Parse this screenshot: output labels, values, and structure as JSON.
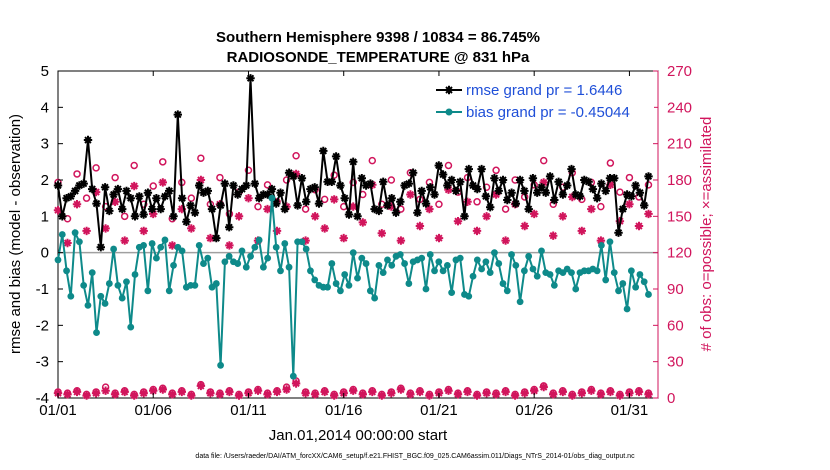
{
  "chart_data": {
    "type": "line",
    "title": "Southern Hemisphere 9398 / 10834 = 86.745%",
    "subtitle": "RADIOSONDE_TEMPERATURE @ 831 hPa",
    "xlabel": "Jan.01,2014 00:00:00 start",
    "ylabel": "rmse and bias (model - observation)",
    "y2label": "# of obs: o=possible; ×=assimilated",
    "footnote": "data file: /Users/raeder/DAI/ATM_forcXX/CAM6_setup/f.e21.FHIST_BGC.f09_025.CAM6assim.011/Diags_NTrS_2014-01/obs_diag_output.nc",
    "xlim": [
      0,
      31.5
    ],
    "ylim": [
      -4,
      5
    ],
    "y2lim": [
      0,
      270
    ],
    "xticks": [
      0,
      5,
      10,
      15,
      20,
      25,
      30
    ],
    "xticklabels": [
      "01/01",
      "01/06",
      "01/11",
      "01/16",
      "01/21",
      "01/26",
      "01/31"
    ],
    "yticks": [
      -4,
      -3,
      -2,
      -1,
      0,
      1,
      2,
      3,
      4,
      5
    ],
    "y2ticks": [
      0,
      30,
      60,
      90,
      120,
      150,
      180,
      210,
      240,
      270
    ],
    "zero_line": 0,
    "legend_position": "top-right",
    "series": [
      {
        "name": "rmse grand pr = 1.6446",
        "axis": "left",
        "color": "#000000",
        "marker": "star",
        "values": [
          1.85,
          1.0,
          1.5,
          1.55,
          1.7,
          1.85,
          1.9,
          3.1,
          1.75,
          1.35,
          0.15,
          1.8,
          1.15,
          1.6,
          1.75,
          1.2,
          1.7,
          1.5,
          1.0,
          1.55,
          1.05,
          1.65,
          1.2,
          1.5,
          1.2,
          1.55,
          1.7,
          1.0,
          3.8,
          1.5,
          0.85,
          1.3,
          1.1,
          1.85,
          1.65,
          1.7,
          1.2,
          0.4,
          1.3,
          1.9,
          0.7,
          1.85,
          1.6,
          1.75,
          1.85,
          4.8,
          1.9,
          1.5,
          1.6,
          1.6,
          1.75,
          1.35,
          1.65,
          1.2,
          2.2,
          2.1,
          1.3,
          2.05,
          1.4,
          1.75,
          1.8,
          1.35,
          2.8,
          1.95,
          1.95,
          2.65,
          1.85,
          1.5,
          1.05,
          2.5,
          1.0,
          2.05,
          1.85,
          1.9,
          1.2,
          1.15,
          1.95,
          1.3,
          1.5,
          1.1,
          1.4,
          1.85,
          1.9,
          2.2,
          1.1,
          1.7,
          1.35,
          1.8,
          1.6,
          2.4,
          2.15,
          1.85,
          2.0,
          1.7,
          1.95,
          1.0,
          2.3,
          1.85,
          1.75,
          2.3,
          1.55,
          1.25,
          2.05,
          1.7,
          2.0,
          1.45,
          1.65,
          1.35,
          2.0,
          1.7,
          1.2,
          2.05,
          1.65,
          1.8,
          1.65,
          2.1,
          1.45,
          1.95,
          1.6,
          1.85,
          2.3,
          1.6,
          1.55,
          2.0,
          1.95,
          1.75,
          1.5,
          1.9,
          1.7,
          2.05,
          2.05,
          0.55,
          1.2,
          1.6,
          1.55,
          1.85,
          1.65,
          1.3,
          2.1
        ]
      },
      {
        "name": "bias grand pr = -0.45044",
        "axis": "left",
        "color": "#0e8a8a",
        "marker": "dot",
        "values": [
          -0.2,
          0.5,
          -0.5,
          -1.2,
          0.55,
          0.3,
          -0.9,
          -1.45,
          -0.55,
          -2.2,
          -1.2,
          -1.4,
          -0.85,
          0.1,
          -0.9,
          -1.25,
          -0.8,
          -2.05,
          -0.6,
          0.15,
          0.2,
          -1.05,
          0.25,
          -0.15,
          0.15,
          0.35,
          -1.05,
          -0.35,
          0.15,
          0.05,
          -0.95,
          -0.9,
          -0.9,
          0.2,
          -0.3,
          -0.15,
          -0.95,
          -0.85,
          -3.1,
          -0.25,
          -0.1,
          -0.25,
          -0.3,
          0.05,
          -0.4,
          -0.1,
          0.15,
          0.35,
          -0.4,
          -0.15,
          1.5,
          0.15,
          -0.5,
          0.25,
          -0.4,
          -3.4,
          0.3,
          0.3,
          0.1,
          -0.5,
          -0.75,
          -0.9,
          -0.95,
          -0.95,
          -0.3,
          -0.85,
          -1.05,
          -0.6,
          -0.9,
          0.0,
          -0.7,
          -0.15,
          -0.3,
          -1.05,
          -1.25,
          -0.35,
          -0.55,
          -0.2,
          -0.35,
          -0.1,
          -0.05,
          -0.3,
          -0.85,
          -0.25,
          -0.2,
          -0.15,
          -1.0,
          -0.05,
          -0.5,
          -0.25,
          -0.5,
          -0.35,
          -1.1,
          -0.2,
          -0.15,
          -1.15,
          -1.2,
          -0.65,
          -0.2,
          -0.45,
          -0.25,
          -0.55,
          0.0,
          -0.3,
          -0.85,
          -1.05,
          -0.05,
          -0.35,
          -1.35,
          -0.5,
          -0.1,
          -0.45,
          -0.65,
          0.05,
          -0.55,
          -0.6,
          -0.9,
          -0.5,
          -0.55,
          -0.45,
          -0.55,
          -1.0,
          -0.55,
          -0.5,
          -0.5,
          -0.45,
          -0.5,
          0.2,
          -0.75,
          0.3,
          -0.55,
          -1.05,
          -0.85,
          -1.55,
          -0.5,
          -0.95,
          -0.6,
          -0.8,
          -1.15
        ]
      },
      {
        "name": "possible",
        "axis": "right",
        "color": "#d1155c",
        "marker": "circle",
        "x": [
          0,
          0.5,
          1,
          1.5,
          2,
          2.5,
          3,
          3.5,
          4,
          4.5,
          5,
          5.5,
          6,
          6.5,
          7,
          7.5,
          8,
          8.5,
          9,
          9.5,
          10,
          10.5,
          11,
          11.5,
          12,
          12.5,
          13,
          13.5,
          14,
          14.5,
          15,
          15.5,
          16,
          16.5,
          17,
          17.5,
          18,
          18.5,
          19,
          19.5,
          20,
          20.5,
          21,
          21.5,
          22,
          22.5,
          23,
          23.5,
          24,
          24.5,
          25,
          25.5,
          26,
          26.5,
          27,
          27.5,
          28,
          28.5,
          29,
          29.5,
          30,
          30.5,
          31
        ],
        "values": [
          178,
          148,
          185,
          165,
          190,
          158,
          182,
          150,
          192,
          160,
          175,
          195,
          148,
          178,
          165,
          198,
          160,
          182,
          152,
          170,
          188,
          158,
          176,
          162,
          180,
          200,
          156,
          172,
          164,
          184,
          158,
          178,
          168,
          196,
          160,
          180,
          156,
          186,
          164,
          178,
          160,
          192,
          170,
          182,
          162,
          174,
          188,
          156,
          180,
          166,
          176,
          196,
          160,
          174,
          186,
          164,
          178,
          158,
          194,
          170,
          182,
          166,
          176
        ]
      },
      {
        "name": "assimilated",
        "axis": "right",
        "color": "#d1155c",
        "marker": "asterisk",
        "x": [
          0,
          0.5,
          1,
          1.5,
          2,
          2.5,
          3,
          3.5,
          4,
          4.5,
          5,
          5.5,
          6,
          6.5,
          7,
          7.5,
          8,
          8.5,
          9,
          9.5,
          10,
          10.5,
          11,
          11.5,
          12,
          12.5,
          13,
          13.5,
          14,
          14.5,
          15,
          15.5,
          16,
          16.5,
          17,
          17.5,
          18,
          18.5,
          19,
          19.5,
          20,
          20.5,
          21,
          21.5,
          22,
          22.5,
          23,
          23.5,
          24,
          24.5,
          25,
          25.5,
          26,
          26.5,
          27,
          27.5,
          28,
          28.5,
          29,
          29.5,
          30,
          30.5,
          31
        ],
        "values": [
          155,
          128,
          160,
          138,
          170,
          140,
          162,
          130,
          175,
          138,
          152,
          178,
          126,
          156,
          140,
          180,
          132,
          160,
          126,
          150,
          165,
          130,
          156,
          138,
          158,
          185,
          130,
          150,
          140,
          164,
          132,
          158,
          145,
          176,
          136,
          158,
          130,
          168,
          142,
          156,
          132,
          172,
          146,
          162,
          138,
          150,
          168,
          130,
          160,
          142,
          152,
          178,
          134,
          150,
          166,
          138,
          156,
          130,
          176,
          146,
          160,
          142,
          152
        ]
      },
      {
        "name": "possible-bottom",
        "axis": "right",
        "color": "#d1155c",
        "marker": "circle",
        "x": [
          0,
          0.5,
          1,
          1.5,
          2,
          2.5,
          3,
          3.5,
          4,
          4.5,
          5,
          5.5,
          6,
          6.5,
          7,
          7.5,
          8,
          8.5,
          9,
          9.5,
          10,
          10.5,
          11,
          11.5,
          12,
          12.5,
          13,
          13.5,
          14,
          14.5,
          15,
          15.5,
          16,
          16.5,
          17,
          17.5,
          18,
          18.5,
          19,
          19.5,
          20,
          20.5,
          21,
          21.5,
          22,
          22.5,
          23,
          23.5,
          24,
          24.5,
          25,
          25.5,
          26,
          26.5,
          27,
          27.5,
          28,
          28.5,
          29,
          29.5,
          30,
          30.5,
          31
        ],
        "values": [
          5,
          4,
          6,
          3,
          5,
          9,
          4,
          6,
          3,
          5,
          7,
          8,
          4,
          6,
          3,
          11,
          5,
          4,
          6,
          3,
          5,
          7,
          4,
          6,
          9,
          14,
          5,
          4,
          6,
          3,
          5,
          7,
          4,
          6,
          3,
          5,
          8,
          4,
          6,
          3,
          5,
          7,
          4,
          6,
          3,
          5,
          4,
          6,
          3,
          5,
          7,
          10,
          4,
          6,
          3,
          5,
          7,
          4,
          6,
          3,
          5,
          6,
          4
        ]
      },
      {
        "name": "assimilated-bottom",
        "axis": "right",
        "color": "#d1155c",
        "marker": "asterisk",
        "x": [
          0,
          0.5,
          1,
          1.5,
          2,
          2.5,
          3,
          3.5,
          4,
          4.5,
          5,
          5.5,
          6,
          6.5,
          7,
          7.5,
          8,
          8.5,
          9,
          9.5,
          10,
          10.5,
          11,
          11.5,
          12,
          12.5,
          13,
          13.5,
          14,
          14.5,
          15,
          15.5,
          16,
          16.5,
          17,
          17.5,
          18,
          18.5,
          19,
          19.5,
          20,
          20.5,
          21,
          21.5,
          22,
          22.5,
          23,
          23.5,
          24,
          24.5,
          25,
          25.5,
          26,
          26.5,
          27,
          27.5,
          28,
          28.5,
          29,
          29.5,
          30,
          30.5,
          31
        ],
        "values": [
          4,
          3,
          5,
          2,
          4,
          6,
          3,
          5,
          2,
          4,
          6,
          7,
          3,
          5,
          2,
          10,
          4,
          3,
          5,
          2,
          4,
          6,
          3,
          5,
          7,
          12,
          4,
          3,
          5,
          2,
          4,
          6,
          3,
          5,
          2,
          4,
          7,
          3,
          5,
          2,
          4,
          6,
          3,
          5,
          2,
          4,
          3,
          5,
          2,
          4,
          6,
          9,
          3,
          5,
          2,
          4,
          6,
          3,
          5,
          2,
          4,
          5,
          3
        ]
      }
    ],
    "legend": [
      {
        "label": "rmse grand pr = 1.6446",
        "color": "#000000",
        "marker": "star"
      },
      {
        "label": "bias grand pr = -0.45044",
        "color": "#0e8a8a",
        "marker": "dot"
      }
    ],
    "axis_colors": {
      "left": "#000000",
      "right": "#d1155c"
    }
  }
}
